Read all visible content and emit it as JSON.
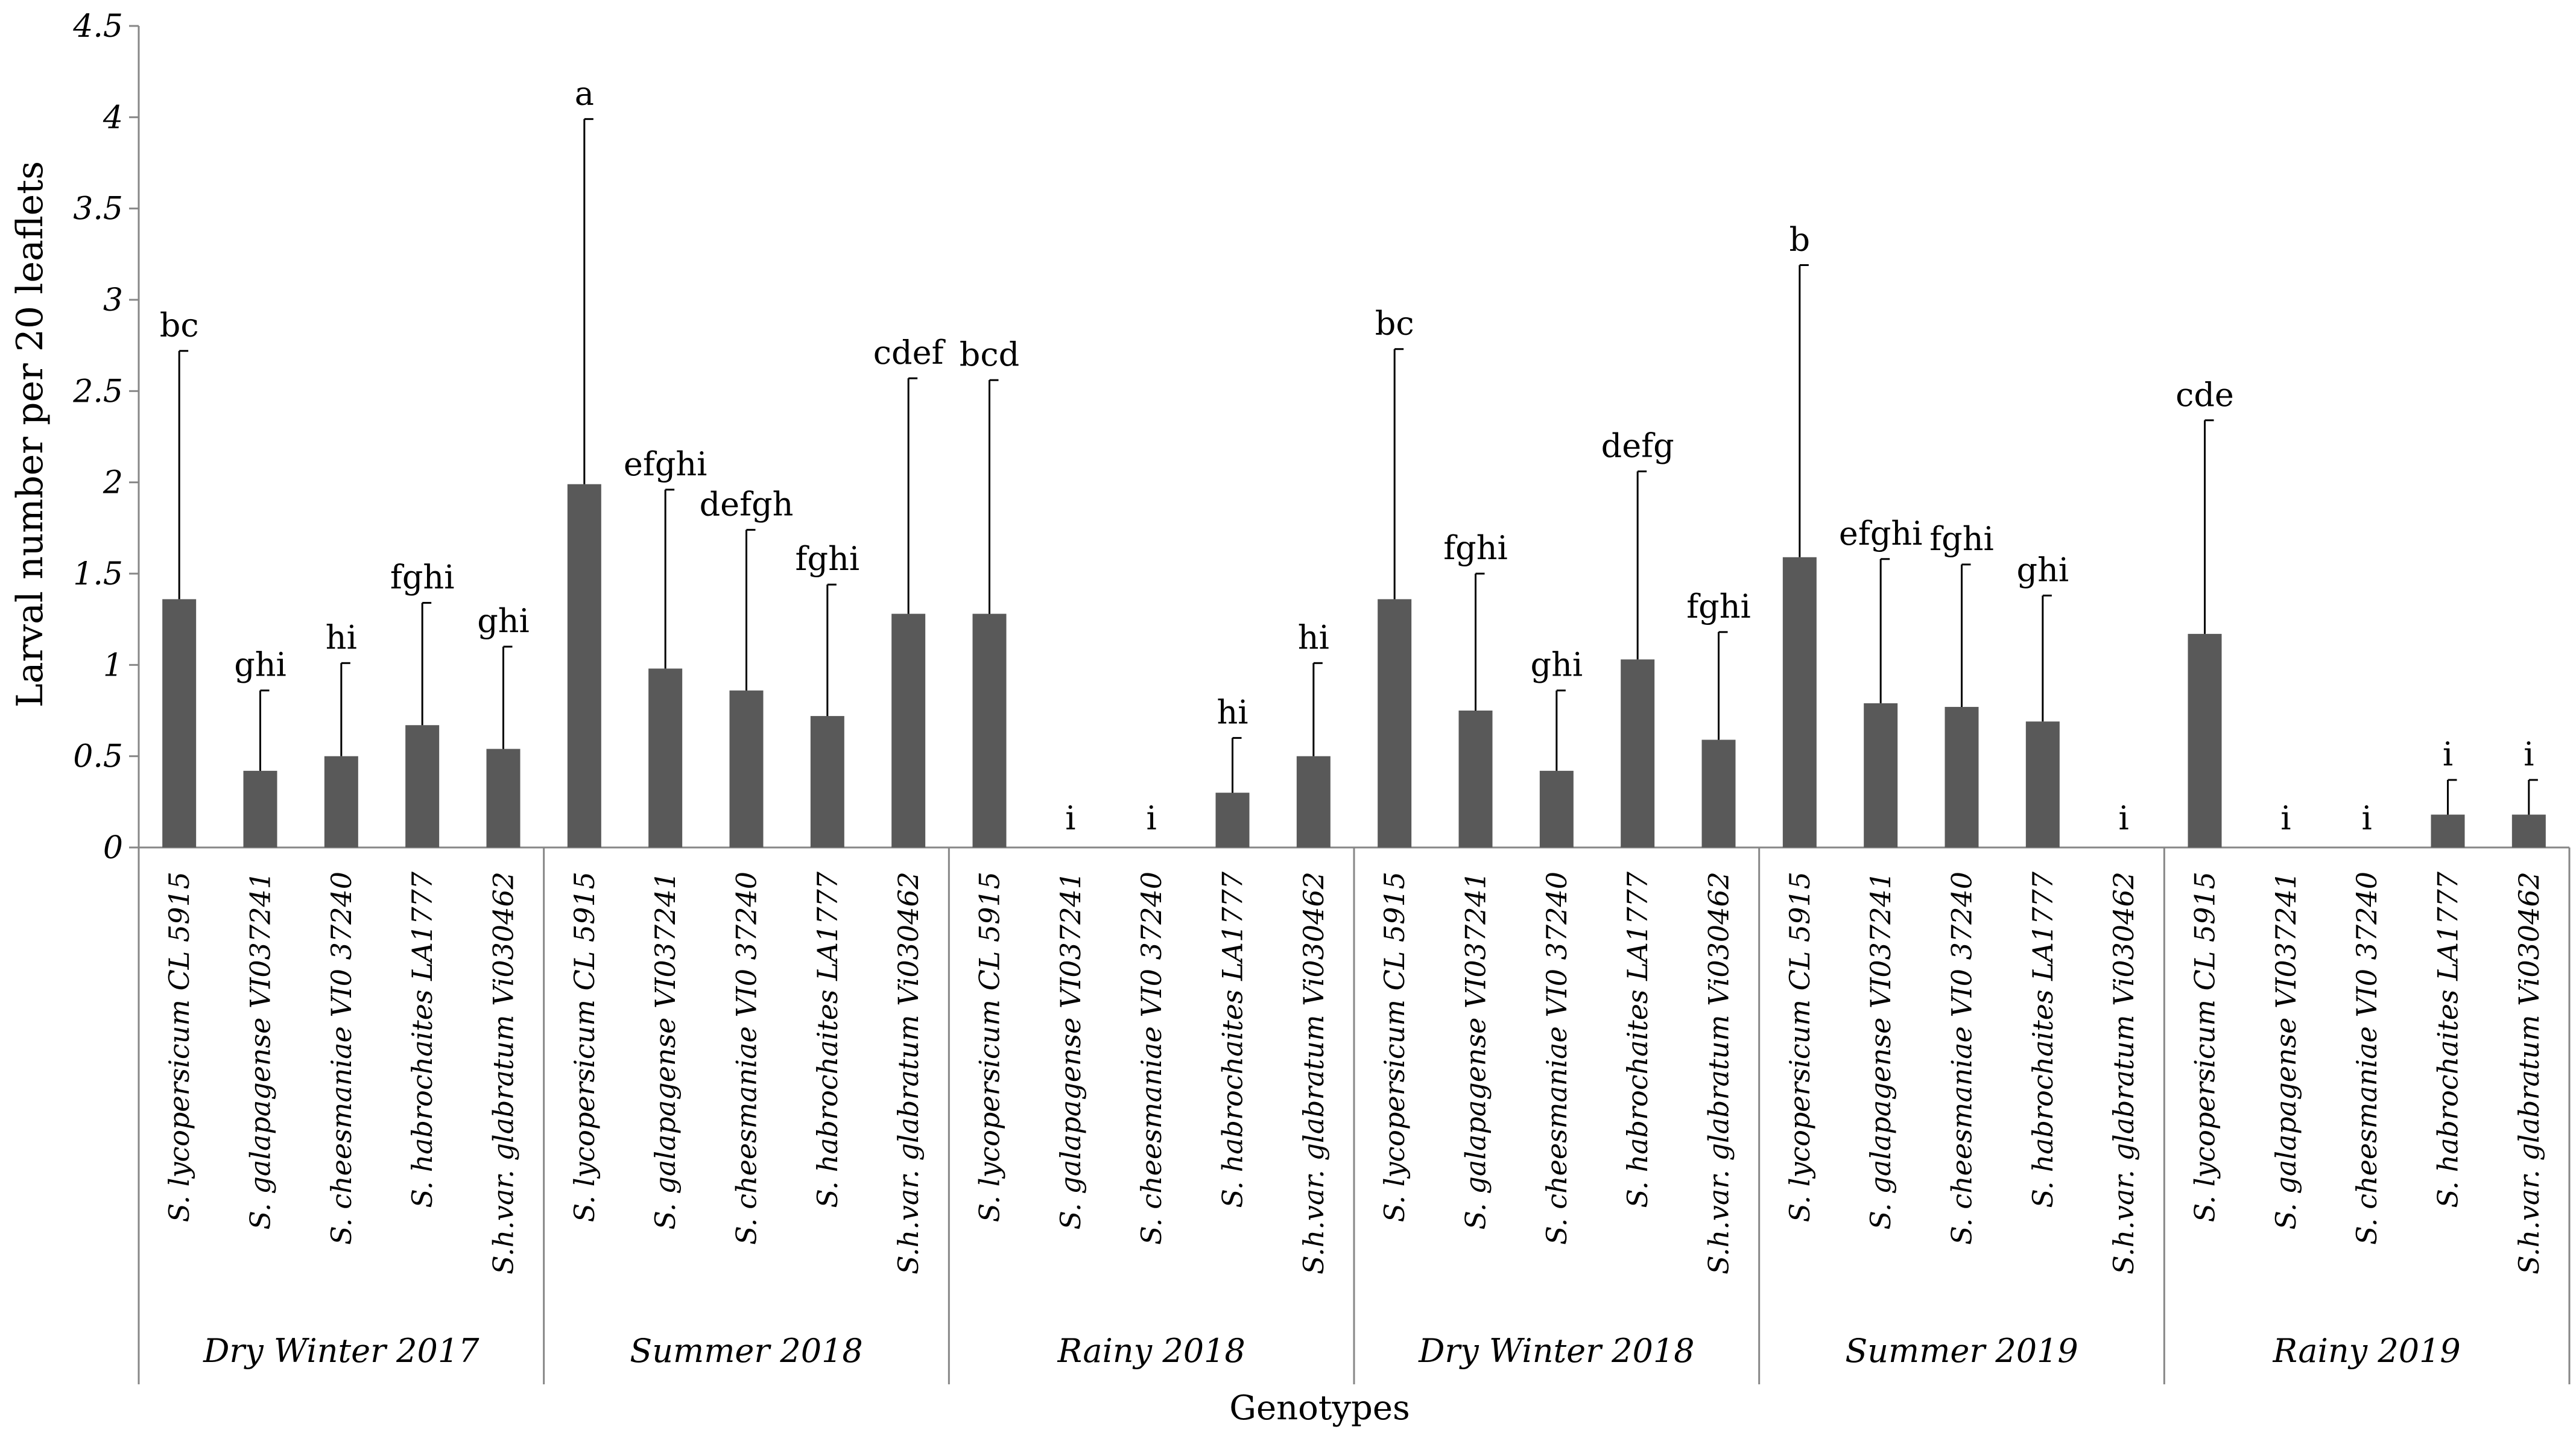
{
  "chart_data": {
    "type": "bar",
    "title": "",
    "xlabel": "Genotypes",
    "ylabel": "Larval number per 20 leaflets",
    "ylim": [
      0,
      4.5
    ],
    "yticks": [
      "0",
      "0.5",
      "1",
      "1.5",
      "2",
      "2.5",
      "3",
      "3.5",
      "4",
      "4.5"
    ],
    "colors": {
      "bar": "#595959",
      "axis": "#878787",
      "error": "#000000"
    },
    "groups": [
      {
        "season": "Dry Winter 2017",
        "bars": [
          {
            "genotype": "S. lycopersicum CL 5915",
            "value": 1.36,
            "error": 1.36,
            "label": "bc"
          },
          {
            "genotype": "S. galapagense VI037241",
            "value": 0.42,
            "error": 0.44,
            "label": "ghi"
          },
          {
            "genotype": "S. cheesmaniae VI0 37240",
            "value": 0.5,
            "error": 0.51,
            "label": "hi"
          },
          {
            "genotype": "S. habrochaites LA1777",
            "value": 0.67,
            "error": 0.67,
            "label": "fghi"
          },
          {
            "genotype": "S.h.var. glabratum Vi030462",
            "value": 0.54,
            "error": 0.56,
            "label": "ghi"
          }
        ]
      },
      {
        "season": "Summer 2018",
        "bars": [
          {
            "genotype": "S. lycopersicum CL 5915",
            "value": 1.99,
            "error": 2.0,
            "label": "a"
          },
          {
            "genotype": "S. galapagense VI037241",
            "value": 0.98,
            "error": 0.98,
            "label": "efghi"
          },
          {
            "genotype": "S. cheesmaniae VI0 37240",
            "value": 0.86,
            "error": 0.88,
            "label": "defgh"
          },
          {
            "genotype": "S. habrochaites LA1777",
            "value": 0.72,
            "error": 0.72,
            "label": "fghi"
          },
          {
            "genotype": "S.h.var. glabratum Vi030462",
            "value": 1.28,
            "error": 1.29,
            "label": "cdef"
          }
        ]
      },
      {
        "season": "Rainy 2018",
        "bars": [
          {
            "genotype": "S. lycopersicum CL 5915",
            "value": 1.28,
            "error": 1.28,
            "label": "bcd"
          },
          {
            "genotype": "S. galapagense VI037241",
            "value": 0,
            "error": 0,
            "label": "i"
          },
          {
            "genotype": "S. cheesmaniae VI0 37240",
            "value": 0,
            "error": 0,
            "label": "i"
          },
          {
            "genotype": "S. habrochaites LA1777",
            "value": 0.3,
            "error": 0.3,
            "label": "hi"
          },
          {
            "genotype": "S.h.var. glabratum Vi030462",
            "value": 0.5,
            "error": 0.51,
            "label": "hi"
          }
        ]
      },
      {
        "season": "Dry Winter 2018",
        "bars": [
          {
            "genotype": "S. lycopersicum CL 5915",
            "value": 1.36,
            "error": 1.37,
            "label": "bc"
          },
          {
            "genotype": "S. galapagense VI037241",
            "value": 0.75,
            "error": 0.75,
            "label": "fghi"
          },
          {
            "genotype": "S. cheesmaniae VI0 37240",
            "value": 0.42,
            "error": 0.44,
            "label": "ghi"
          },
          {
            "genotype": "S. habrochaites LA1777",
            "value": 1.03,
            "error": 1.03,
            "label": "defg"
          },
          {
            "genotype": "S.h.var. glabratum Vi030462",
            "value": 0.59,
            "error": 0.59,
            "label": "fghi"
          }
        ]
      },
      {
        "season": "Summer 2019",
        "bars": [
          {
            "genotype": "S. lycopersicum CL 5915",
            "value": 1.59,
            "error": 1.6,
            "label": "b"
          },
          {
            "genotype": "S. galapagense VI037241",
            "value": 0.79,
            "error": 0.79,
            "label": "efghi"
          },
          {
            "genotype": "S. cheesmaniae VI0 37240",
            "value": 0.77,
            "error": 0.78,
            "label": "fghi"
          },
          {
            "genotype": "S. habrochaites LA1777",
            "value": 0.69,
            "error": 0.69,
            "label": "ghi"
          },
          {
            "genotype": "S.h.var. glabratum Vi030462",
            "value": 0,
            "error": 0,
            "label": "i"
          }
        ]
      },
      {
        "season": "Rainy 2019",
        "bars": [
          {
            "genotype": "S. lycopersicum CL 5915",
            "value": 1.17,
            "error": 1.17,
            "label": "cde"
          },
          {
            "genotype": "S. galapagense VI037241",
            "value": 0,
            "error": 0,
            "label": "i"
          },
          {
            "genotype": "S. cheesmaniae VI0 37240",
            "value": 0,
            "error": 0,
            "label": "i"
          },
          {
            "genotype": "S. habrochaites LA1777",
            "value": 0.18,
            "error": 0.19,
            "label": "i"
          },
          {
            "genotype": "S.h.var. glabratum Vi030462",
            "value": 0.18,
            "error": 0.19,
            "label": "i"
          }
        ]
      }
    ]
  }
}
